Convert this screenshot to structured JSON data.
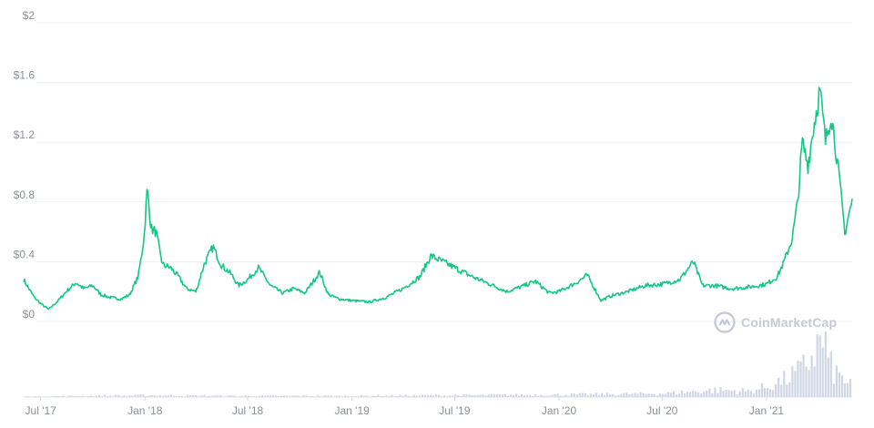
{
  "watermark": {
    "text": "CoinMarketCap",
    "icon": "coinmarketcap-logo-icon"
  },
  "colors": {
    "price_line": "#16c784",
    "volume": "#cfd6e4",
    "grid": "#eceff3",
    "tick_text": "#8a8f98"
  },
  "chart_data": {
    "type": "line",
    "title": "",
    "xlabel": "",
    "ylabel": "",
    "ylim": [
      0,
      2
    ],
    "y_ticks": [
      {
        "value": 0,
        "label": "$0"
      },
      {
        "value": 0.4,
        "label": "$0.4"
      },
      {
        "value": 0.8,
        "label": "$0.8"
      },
      {
        "value": 1.2,
        "label": "$1.2"
      },
      {
        "value": 1.6,
        "label": "$1.6"
      },
      {
        "value": 2,
        "label": "$2"
      }
    ],
    "x_ticks": [
      {
        "date": "2017-07-01",
        "label": "Jul '17"
      },
      {
        "date": "2018-01-01",
        "label": "Jan '18"
      },
      {
        "date": "2018-07-01",
        "label": "Jul '18"
      },
      {
        "date": "2019-01-01",
        "label": "Jan '19"
      },
      {
        "date": "2019-07-01",
        "label": "Jul '19"
      },
      {
        "date": "2020-01-01",
        "label": "Jan '20"
      },
      {
        "date": "2020-07-01",
        "label": "Jul '20"
      },
      {
        "date": "2021-01-01",
        "label": "Jan '21"
      }
    ],
    "xlim": [
      "2017-06-01",
      "2021-06-01"
    ],
    "grid": "horizontal",
    "series": [
      {
        "points": [
          [
            "2017-06-01",
            0.28
          ],
          [
            "2017-06-10",
            0.22
          ],
          [
            "2017-06-20",
            0.16
          ],
          [
            "2017-07-01",
            0.12
          ],
          [
            "2017-07-15",
            0.08
          ],
          [
            "2017-08-01",
            0.14
          ],
          [
            "2017-08-15",
            0.2
          ],
          [
            "2017-09-01",
            0.26
          ],
          [
            "2017-09-15",
            0.22
          ],
          [
            "2017-10-01",
            0.24
          ],
          [
            "2017-10-15",
            0.18
          ],
          [
            "2017-11-01",
            0.16
          ],
          [
            "2017-11-20",
            0.15
          ],
          [
            "2017-12-05",
            0.18
          ],
          [
            "2017-12-20",
            0.3
          ],
          [
            "2017-12-30",
            0.55
          ],
          [
            "2018-01-05",
            0.89
          ],
          [
            "2018-01-12",
            0.62
          ],
          [
            "2018-01-20",
            0.6
          ],
          [
            "2018-02-01",
            0.38
          ],
          [
            "2018-02-15",
            0.36
          ],
          [
            "2018-03-01",
            0.3
          ],
          [
            "2018-03-15",
            0.22
          ],
          [
            "2018-04-01",
            0.2
          ],
          [
            "2018-04-15",
            0.38
          ],
          [
            "2018-05-01",
            0.5
          ],
          [
            "2018-05-15",
            0.38
          ],
          [
            "2018-06-01",
            0.32
          ],
          [
            "2018-06-15",
            0.24
          ],
          [
            "2018-07-01",
            0.28
          ],
          [
            "2018-07-20",
            0.36
          ],
          [
            "2018-08-10",
            0.24
          ],
          [
            "2018-09-01",
            0.19
          ],
          [
            "2018-09-20",
            0.22
          ],
          [
            "2018-10-10",
            0.19
          ],
          [
            "2018-11-05",
            0.33
          ],
          [
            "2018-11-20",
            0.18
          ],
          [
            "2018-12-10",
            0.15
          ],
          [
            "2019-01-01",
            0.14
          ],
          [
            "2019-02-01",
            0.13
          ],
          [
            "2019-03-01",
            0.16
          ],
          [
            "2019-04-01",
            0.22
          ],
          [
            "2019-05-01",
            0.3
          ],
          [
            "2019-05-20",
            0.44
          ],
          [
            "2019-06-10",
            0.4
          ],
          [
            "2019-07-01",
            0.36
          ],
          [
            "2019-08-01",
            0.3
          ],
          [
            "2019-09-01",
            0.25
          ],
          [
            "2019-10-01",
            0.2
          ],
          [
            "2019-11-01",
            0.24
          ],
          [
            "2019-11-20",
            0.27
          ],
          [
            "2019-12-15",
            0.19
          ],
          [
            "2020-01-01",
            0.2
          ],
          [
            "2020-02-01",
            0.26
          ],
          [
            "2020-02-20",
            0.31
          ],
          [
            "2020-03-15",
            0.14
          ],
          [
            "2020-04-01",
            0.17
          ],
          [
            "2020-05-01",
            0.2
          ],
          [
            "2020-06-01",
            0.24
          ],
          [
            "2020-07-01",
            0.25
          ],
          [
            "2020-08-01",
            0.28
          ],
          [
            "2020-08-25",
            0.4
          ],
          [
            "2020-09-10",
            0.24
          ],
          [
            "2020-10-01",
            0.24
          ],
          [
            "2020-11-01",
            0.22
          ],
          [
            "2020-12-01",
            0.23
          ],
          [
            "2021-01-01",
            0.25
          ],
          [
            "2021-01-20",
            0.3
          ],
          [
            "2021-02-01",
            0.4
          ],
          [
            "2021-02-15",
            0.55
          ],
          [
            "2021-02-25",
            0.8
          ],
          [
            "2021-03-05",
            1.2
          ],
          [
            "2021-03-15",
            1.05
          ],
          [
            "2021-03-25",
            1.3
          ],
          [
            "2021-04-05",
            1.55
          ],
          [
            "2021-04-15",
            1.2
          ],
          [
            "2021-04-25",
            1.4
          ],
          [
            "2021-05-05",
            1.1
          ],
          [
            "2021-05-15",
            0.75
          ],
          [
            "2021-05-20",
            0.58
          ],
          [
            "2021-05-25",
            0.7
          ],
          [
            "2021-06-01",
            0.8
          ]
        ]
      }
    ],
    "volume": {
      "note_scale": "relative",
      "points": [
        [
          "2017-06-01",
          0.01
        ],
        [
          "2018-01-01",
          0.03
        ],
        [
          "2018-07-01",
          0.02
        ],
        [
          "2019-01-01",
          0.02
        ],
        [
          "2019-07-01",
          0.03
        ],
        [
          "2020-01-01",
          0.04
        ],
        [
          "2020-07-01",
          0.06
        ],
        [
          "2020-10-01",
          0.12
        ],
        [
          "2020-12-01",
          0.1
        ],
        [
          "2021-01-01",
          0.18
        ],
        [
          "2021-02-01",
          0.3
        ],
        [
          "2021-03-01",
          0.45
        ],
        [
          "2021-04-10",
          1.0
        ],
        [
          "2021-04-20",
          0.55
        ],
        [
          "2021-05-01",
          0.4
        ],
        [
          "2021-06-01",
          0.2
        ]
      ]
    }
  }
}
